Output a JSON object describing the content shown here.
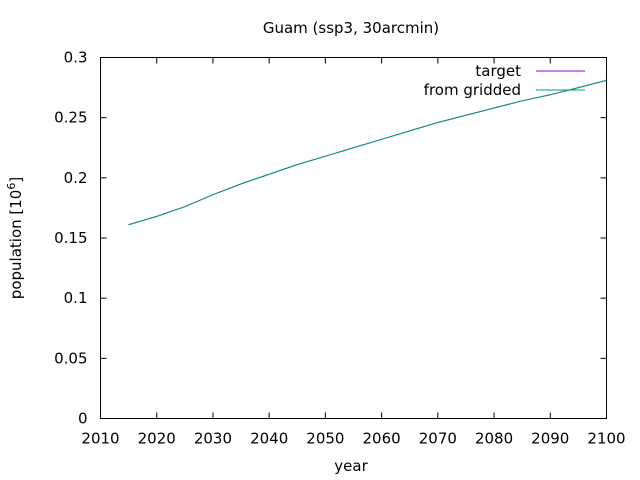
{
  "chart_data": {
    "type": "line",
    "title": "Guam (ssp3, 30arcmin)",
    "xlabel": "year",
    "ylabel": "population [10",
    "ylabel_exponent": "6",
    "ylabel_close": "]",
    "xlim": [
      2010,
      2100
    ],
    "ylim": [
      0,
      0.3
    ],
    "xticks": [
      2010,
      2020,
      2030,
      2040,
      2050,
      2060,
      2070,
      2080,
      2090,
      2100
    ],
    "yticks": [
      0,
      0.05,
      0.1,
      0.15,
      0.2,
      0.25,
      0.3
    ],
    "ytick_labels": [
      "0",
      "0.05",
      "0.1",
      "0.15",
      "0.2",
      "0.25",
      "0.3"
    ],
    "grid": false,
    "legend_position": "top-right",
    "x": [
      2015,
      2020,
      2025,
      2030,
      2035,
      2040,
      2045,
      2050,
      2055,
      2060,
      2065,
      2070,
      2075,
      2080,
      2085,
      2090,
      2095,
      2100
    ],
    "series": [
      {
        "name": "target",
        "color": "#9400d3",
        "values": [
          0.161,
          0.168,
          0.176,
          0.186,
          0.195,
          0.203,
          0.211,
          0.218,
          0.225,
          0.232,
          0.239,
          0.246,
          0.252,
          0.258,
          0.264,
          0.269,
          0.275,
          0.281
        ]
      },
      {
        "name": "from gridded",
        "color": "#009e73",
        "values": [
          0.161,
          0.168,
          0.176,
          0.186,
          0.195,
          0.203,
          0.211,
          0.218,
          0.225,
          0.232,
          0.239,
          0.246,
          0.252,
          0.258,
          0.264,
          0.269,
          0.275,
          0.281
        ]
      }
    ]
  }
}
